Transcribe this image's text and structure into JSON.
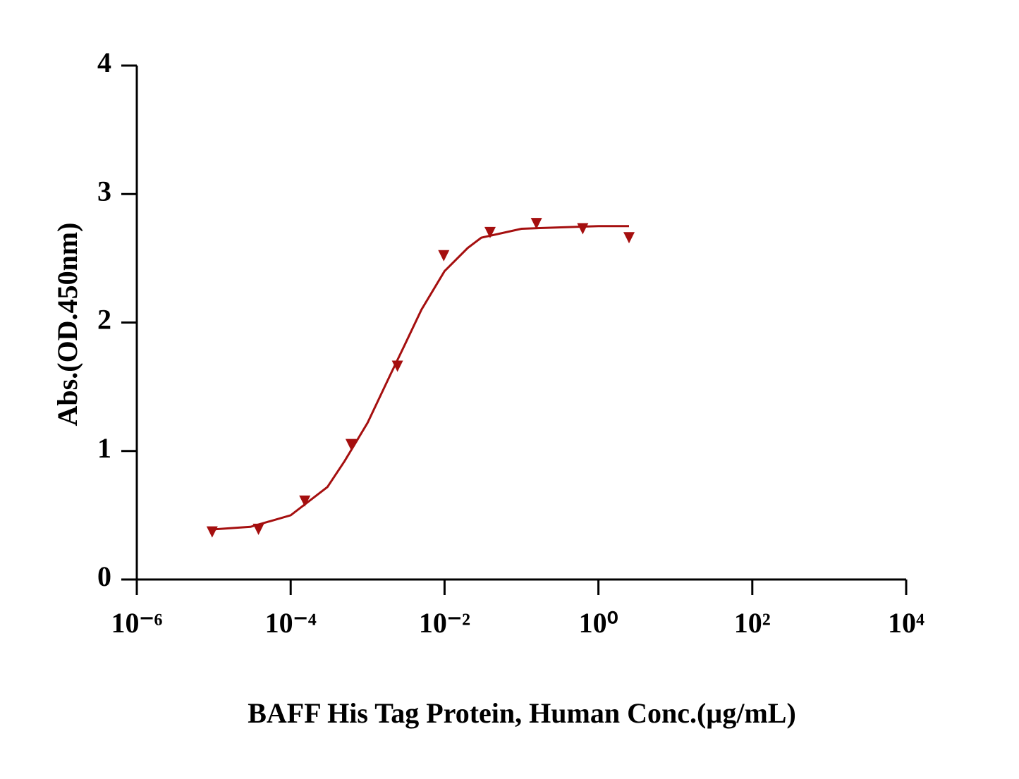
{
  "chart_data": {
    "type": "scatter",
    "ylabel": "Abs.(OD.450nm)",
    "xlabel": "BAFF His Tag Protein, Human  Conc.(µg/mL)",
    "xscale": "log",
    "xlim": [
      1e-06,
      10000
    ],
    "ylim": [
      0,
      4
    ],
    "xticks": [
      {
        "value": 1e-06,
        "label": "10⁻⁶"
      },
      {
        "value": 0.0001,
        "label": "10⁻⁴"
      },
      {
        "value": 0.01,
        "label": "10⁻²"
      },
      {
        "value": 1,
        "label": "10⁰"
      },
      {
        "value": 100,
        "label": "10²"
      },
      {
        "value": 10000,
        "label": "10⁴"
      }
    ],
    "yticks": [
      0,
      1,
      2,
      3,
      4
    ],
    "color": "#a50f0f",
    "points": {
      "x": [
        9.5367e-06,
        3.8147e-05,
        0.00015259,
        0.00061035,
        0.0024414,
        0.0097656,
        0.0390625,
        0.15625,
        0.625,
        2.5
      ],
      "values": [
        0.37,
        0.39,
        0.61,
        1.05,
        1.66,
        2.52,
        2.7,
        2.77,
        2.73,
        2.66
      ]
    },
    "curve": {
      "x": [
        1e-05,
        3e-05,
        0.0001,
        0.0003,
        0.0005,
        0.001,
        0.002,
        0.003,
        0.005,
        0.01,
        0.02,
        0.03,
        0.1,
        0.3,
        1,
        2.5
      ],
      "values": [
        0.39,
        0.41,
        0.5,
        0.72,
        0.92,
        1.22,
        1.6,
        1.82,
        2.1,
        2.4,
        2.58,
        2.66,
        2.73,
        2.74,
        2.75,
        2.75
      ]
    }
  }
}
